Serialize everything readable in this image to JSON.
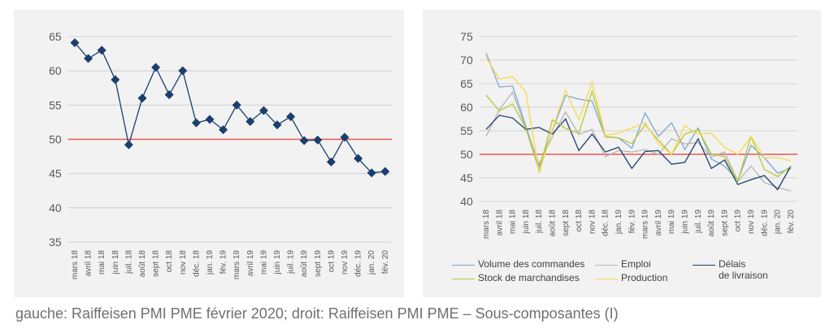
{
  "caption": "gauche: Raiffeisen PMI PME février 2020; droit: Raiffeisen PMI PME – Sous-composantes (I)",
  "chart_data": [
    {
      "type": "line",
      "categories": [
        "mars 18",
        "avril 18",
        "mai 18",
        "juin 18",
        "juil. 18",
        "août 18",
        "sept 18",
        "oct 18",
        "nov 18",
        "déc. 18",
        "jan. 19",
        "fév. 19",
        "mars 19",
        "avril 19",
        "mai 19",
        "juin 19",
        "juil. 19",
        "août 19",
        "sept 19",
        "oct 19",
        "nov 19",
        "déc. 19",
        "jan. 20",
        "fév. 20"
      ],
      "series": [
        {
          "values": [
            64.1,
            61.8,
            63.0,
            58.7,
            49.2,
            56.0,
            60.5,
            56.5,
            60.0,
            52.4,
            52.9,
            51.4,
            55.0,
            52.6,
            54.2,
            52.1,
            53.3,
            49.8,
            49.9,
            46.7,
            50.3,
            47.2,
            45.1,
            45.3
          ],
          "color": "#1a3e6e"
        }
      ],
      "ylim": [
        35,
        65
      ],
      "yticks": [
        35,
        40,
        45,
        50,
        55,
        60,
        65
      ],
      "reference_line": {
        "value": 50,
        "color": "#e8574f"
      },
      "marker": "diamond"
    },
    {
      "type": "line",
      "categories": [
        "mars 18",
        "avril 18",
        "mai 18",
        "juin 18",
        "juil. 18",
        "août 18",
        "sept 18",
        "oct 18",
        "nov 18",
        "déc. 18",
        "jan. 19",
        "fév. 19",
        "mars 19",
        "avril 19",
        "mai 19",
        "juin 19",
        "juil. 19",
        "août 19",
        "sept 19",
        "oct 19",
        "nov 19",
        "déc. 19",
        "jan. 20",
        "fév. 20"
      ],
      "ylim": [
        40,
        75
      ],
      "yticks": [
        40,
        45,
        50,
        55,
        60,
        65,
        70,
        75
      ],
      "reference_line": {
        "value": 50,
        "color": "#e8574f"
      },
      "legend_position": "bottom",
      "series": [
        {
          "name": "Volume des commandes",
          "color": "#7fa6d3",
          "values": [
            71.5,
            64.3,
            64.5,
            56.0,
            47.5,
            55.0,
            62.5,
            61.7,
            61.3,
            53.7,
            53.5,
            51.3,
            58.8,
            53.8,
            56.7,
            51.0,
            55.6,
            49.0,
            47.5,
            44.5,
            51.9,
            49.3,
            46.0,
            47.0
          ]
        },
        {
          "name": "Emploi",
          "color": "#b5b5b5",
          "values": [
            53.8,
            59.5,
            63.2,
            55.5,
            48.0,
            53.7,
            59.0,
            54.2,
            55.3,
            49.5,
            50.8,
            50.5,
            51.0,
            50.0,
            53.3,
            52.2,
            52.5,
            49.4,
            50.5,
            44.3,
            47.5,
            44.0,
            43.0,
            42.2
          ]
        },
        {
          "name": "Délais de livraison",
          "color": "#1a3e6e",
          "values": [
            55.3,
            58.3,
            57.7,
            55.3,
            55.7,
            54.3,
            57.5,
            50.8,
            54.3,
            50.5,
            51.5,
            47.0,
            50.6,
            50.8,
            47.9,
            48.3,
            53.3,
            47.0,
            48.8,
            43.6,
            44.6,
            45.5,
            42.5,
            47.5
          ]
        },
        {
          "name": "Stock de marchandises",
          "color": "#b6c832",
          "values": [
            62.6,
            59.2,
            60.7,
            55.5,
            46.5,
            57.3,
            55.5,
            54.5,
            63.4,
            53.8,
            53.5,
            52.3,
            56.3,
            53.0,
            50.0,
            54.3,
            55.2,
            50.1,
            49.5,
            44.3,
            53.8,
            46.8,
            45.3,
            47.5
          ]
        },
        {
          "name": "Production",
          "color": "#f7d84c",
          "values": [
            70.6,
            66.0,
            66.5,
            63.3,
            46.0,
            55.2,
            63.6,
            57.3,
            65.3,
            54.0,
            54.5,
            55.6,
            56.7,
            52.3,
            50.0,
            56.1,
            54.3,
            54.5,
            51.5,
            50.0,
            53.8,
            49.3,
            49.3,
            48.6
          ]
        }
      ]
    }
  ]
}
